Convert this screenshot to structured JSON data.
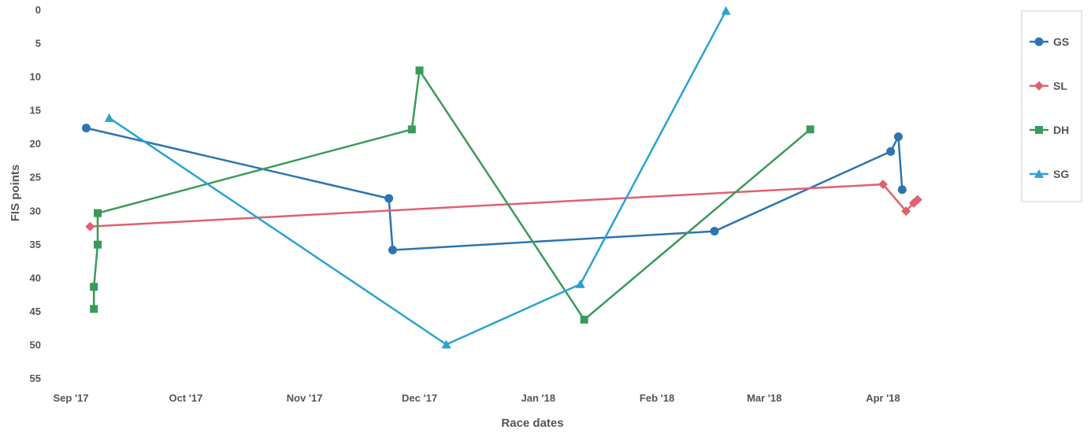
{
  "chart_data": {
    "type": "line",
    "xlabel": "Race dates",
    "ylabel": "FIS points",
    "y_reversed": true,
    "ylim": [
      0,
      55
    ],
    "y_ticks": [
      "0",
      "5",
      "10",
      "15",
      "20",
      "25",
      "30",
      "35",
      "40",
      "45",
      "50",
      "55"
    ],
    "xlim": [
      "2017-09-01",
      "2018-04-30"
    ],
    "x_ticks": [
      {
        "date": "2017-09-01",
        "label": "Sep '17"
      },
      {
        "date": "2017-10-01",
        "label": "Oct '17"
      },
      {
        "date": "2017-11-01",
        "label": "Nov '17"
      },
      {
        "date": "2017-12-01",
        "label": "Dec '17"
      },
      {
        "date": "2018-01-01",
        "label": "Jan '18"
      },
      {
        "date": "2018-02-01",
        "label": "Feb '18"
      },
      {
        "date": "2018-03-01",
        "label": "Mar '18"
      },
      {
        "date": "2018-04-01",
        "label": "Apr '18"
      }
    ],
    "legend_position": "right",
    "series": [
      {
        "name": "GS",
        "color": "#2d74b1",
        "marker": "circle",
        "points": [
          {
            "x": "2017-09-05",
            "y": 17.7
          },
          {
            "x": "2017-11-23",
            "y": 28.2
          },
          {
            "x": "2017-11-24",
            "y": 35.9
          },
          {
            "x": "2018-02-16",
            "y": 33.1
          },
          {
            "x": "2018-04-03",
            "y": 21.2
          },
          {
            "x": "2018-04-05",
            "y": 19.0
          },
          {
            "x": "2018-04-06",
            "y": 26.9
          }
        ]
      },
      {
        "name": "SL",
        "color": "#e0616e",
        "marker": "diamond",
        "points": [
          {
            "x": "2017-09-06",
            "y": 32.4
          },
          {
            "x": "2018-04-01",
            "y": 26.1
          },
          {
            "x": "2018-04-07",
            "y": 30.1
          },
          {
            "x": "2018-04-09",
            "y": 28.9
          },
          {
            "x": "2018-04-10",
            "y": 28.4
          }
        ]
      },
      {
        "name": "DH",
        "color": "#3a9a5a",
        "marker": "square",
        "points": [
          {
            "x": "2017-09-07",
            "y": 44.7
          },
          {
            "x": "2017-09-07",
            "y": 41.4
          },
          {
            "x": "2017-09-08",
            "y": 35.1
          },
          {
            "x": "2017-09-08",
            "y": 30.4
          },
          {
            "x": "2017-11-29",
            "y": 17.9
          },
          {
            "x": "2017-12-01",
            "y": 9.1
          },
          {
            "x": "2018-01-13",
            "y": 46.3
          },
          {
            "x": "2018-03-13",
            "y": 17.9
          }
        ]
      },
      {
        "name": "SG",
        "color": "#2ba2d2",
        "marker": "triangle",
        "points": [
          {
            "x": "2017-09-11",
            "y": 16.2
          },
          {
            "x": "2017-12-08",
            "y": 50.0
          },
          {
            "x": "2018-01-12",
            "y": 41.0
          },
          {
            "x": "2018-02-19",
            "y": 0.2
          }
        ]
      }
    ]
  }
}
